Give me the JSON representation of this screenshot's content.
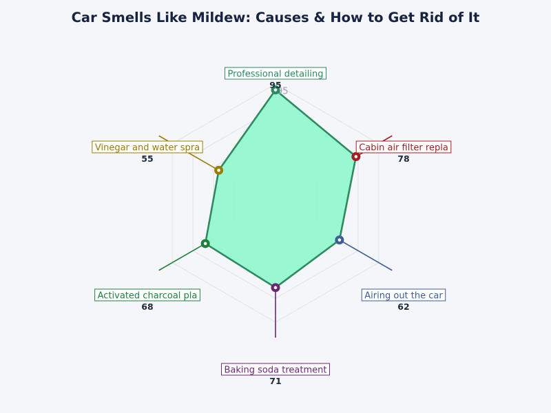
{
  "chart_data": {
    "type": "radar",
    "title": "Car Smells Like Mildew: Causes & How to Get Rid of It",
    "r_range": [
      0,
      100
    ],
    "grid": true,
    "series": [
      {
        "color": "#2d8a5f",
        "fill_color": "#93f7d0",
        "values": [
          95,
          78,
          62,
          71,
          68,
          55
        ]
      }
    ],
    "axes": [
      {
        "label": "Professional detailing",
        "value_label": "95",
        "color": "#2d8a5f"
      },
      {
        "label": "Cabin air filter repla",
        "value_label": "78",
        "color": "#a61e22"
      },
      {
        "label": "Airing out the car",
        "value_label": "62",
        "color": "#3d5d96"
      },
      {
        "label": "Baking soda treatment",
        "value_label": "71",
        "color": "#6b2776"
      },
      {
        "label": "Activated charcoal pla",
        "value_label": "68",
        "color": "#1f7f3e"
      },
      {
        "label": "Vinegar and water spra",
        "value_label": "55",
        "color": "#9a7d00"
      }
    ],
    "peak_marker": "95"
  }
}
